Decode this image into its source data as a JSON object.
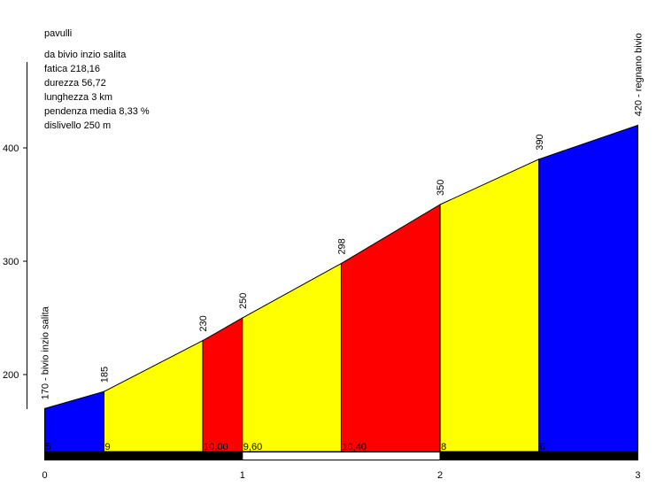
{
  "header": {
    "name": "pavulli",
    "lines": [
      "da bivio inzio salita",
      "fatica 218,16",
      "durezza 56,72",
      "lunghezza 3 km",
      "pendenza media 8,33 %",
      "dislivello 250 m"
    ]
  },
  "colors": {
    "blue": "#0000ff",
    "yellow": "#ffff00",
    "red": "#ff0000",
    "black": "#000000",
    "white": "#ffffff"
  },
  "chart_data": {
    "type": "area",
    "title": "pavulli",
    "xlabel": "",
    "ylabel": "",
    "xlim": [
      0,
      3
    ],
    "ylim": [
      145,
      430
    ],
    "x_ticks": [
      0,
      1,
      2,
      3
    ],
    "y_ticks": [
      200,
      300,
      400
    ],
    "profile": [
      {
        "km": 0,
        "alt": 170,
        "label": "170 - bivio inzio salita"
      },
      {
        "km": 0.3,
        "alt": 185,
        "label": "185"
      },
      {
        "km": 0.8,
        "alt": 230,
        "label": "230"
      },
      {
        "km": 1.0,
        "alt": 250,
        "label": "250"
      },
      {
        "km": 1.5,
        "alt": 298,
        "label": "298"
      },
      {
        "km": 2.0,
        "alt": 350,
        "label": "350"
      },
      {
        "km": 2.5,
        "alt": 390,
        "label": "390"
      },
      {
        "km": 3.0,
        "alt": 420,
        "label": "420 - regnano bivio"
      }
    ],
    "segments": [
      {
        "from": 0,
        "to": 0.3,
        "color": "blue",
        "gradient": "5"
      },
      {
        "from": 0.3,
        "to": 0.8,
        "color": "yellow",
        "gradient": "9"
      },
      {
        "from": 0.8,
        "to": 1.0,
        "color": "red",
        "gradient": "10,00"
      },
      {
        "from": 1.0,
        "to": 1.5,
        "color": "yellow",
        "gradient": "9,60"
      },
      {
        "from": 1.5,
        "to": 2.0,
        "color": "red",
        "gradient": "10,40"
      },
      {
        "from": 2.0,
        "to": 2.5,
        "color": "yellow",
        "gradient": "8"
      },
      {
        "from": 2.5,
        "to": 3.0,
        "color": "blue",
        "gradient": "6"
      }
    ],
    "km_bar": [
      {
        "from": 0,
        "to": 1,
        "color": "black"
      },
      {
        "from": 1,
        "to": 2,
        "color": "white"
      },
      {
        "from": 2,
        "to": 3,
        "color": "black"
      }
    ]
  }
}
